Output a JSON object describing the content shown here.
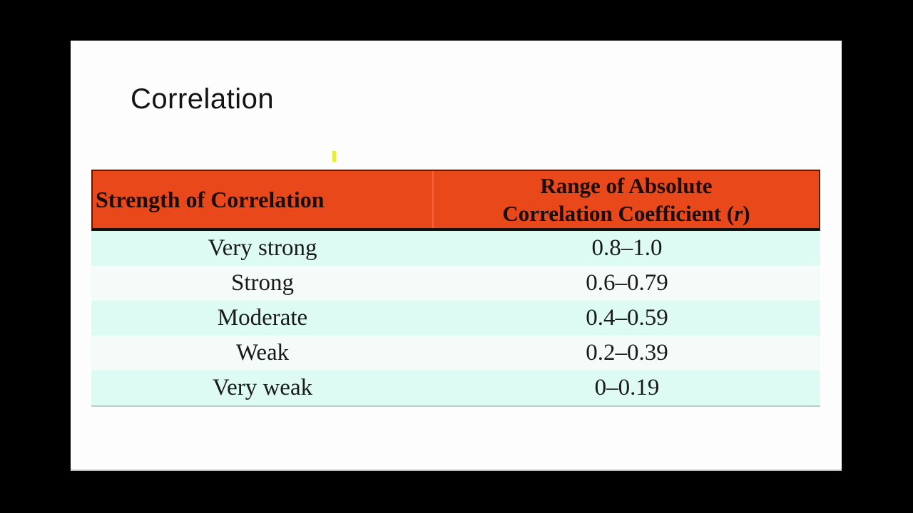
{
  "slide": {
    "title": "Correlation"
  },
  "table": {
    "headers": {
      "col1": "Strength of Correlation",
      "col2_line1": "Range of Absolute",
      "col2_line2_pre": "Correlation Coefficient (",
      "col2_r": "r",
      "col2_close": ")"
    },
    "rows": [
      {
        "strength": "Very strong",
        "range": "0.8–1.0"
      },
      {
        "strength": "Strong",
        "range": "0.6–0.79"
      },
      {
        "strength": "Moderate",
        "range": "0.4–0.59"
      },
      {
        "strength": "Weak",
        "range": "0.2–0.39"
      },
      {
        "strength": "Very weak",
        "range": "0–0.19"
      }
    ]
  },
  "colors": {
    "frame": "#000000",
    "slide_bg": "#fdfdfd",
    "header_bg": "#e8481a",
    "header_text": "#1a0d08",
    "row_odd": "#ddfaf3",
    "row_even": "#f4fbf8",
    "marker_yellow": "#e6f033"
  }
}
